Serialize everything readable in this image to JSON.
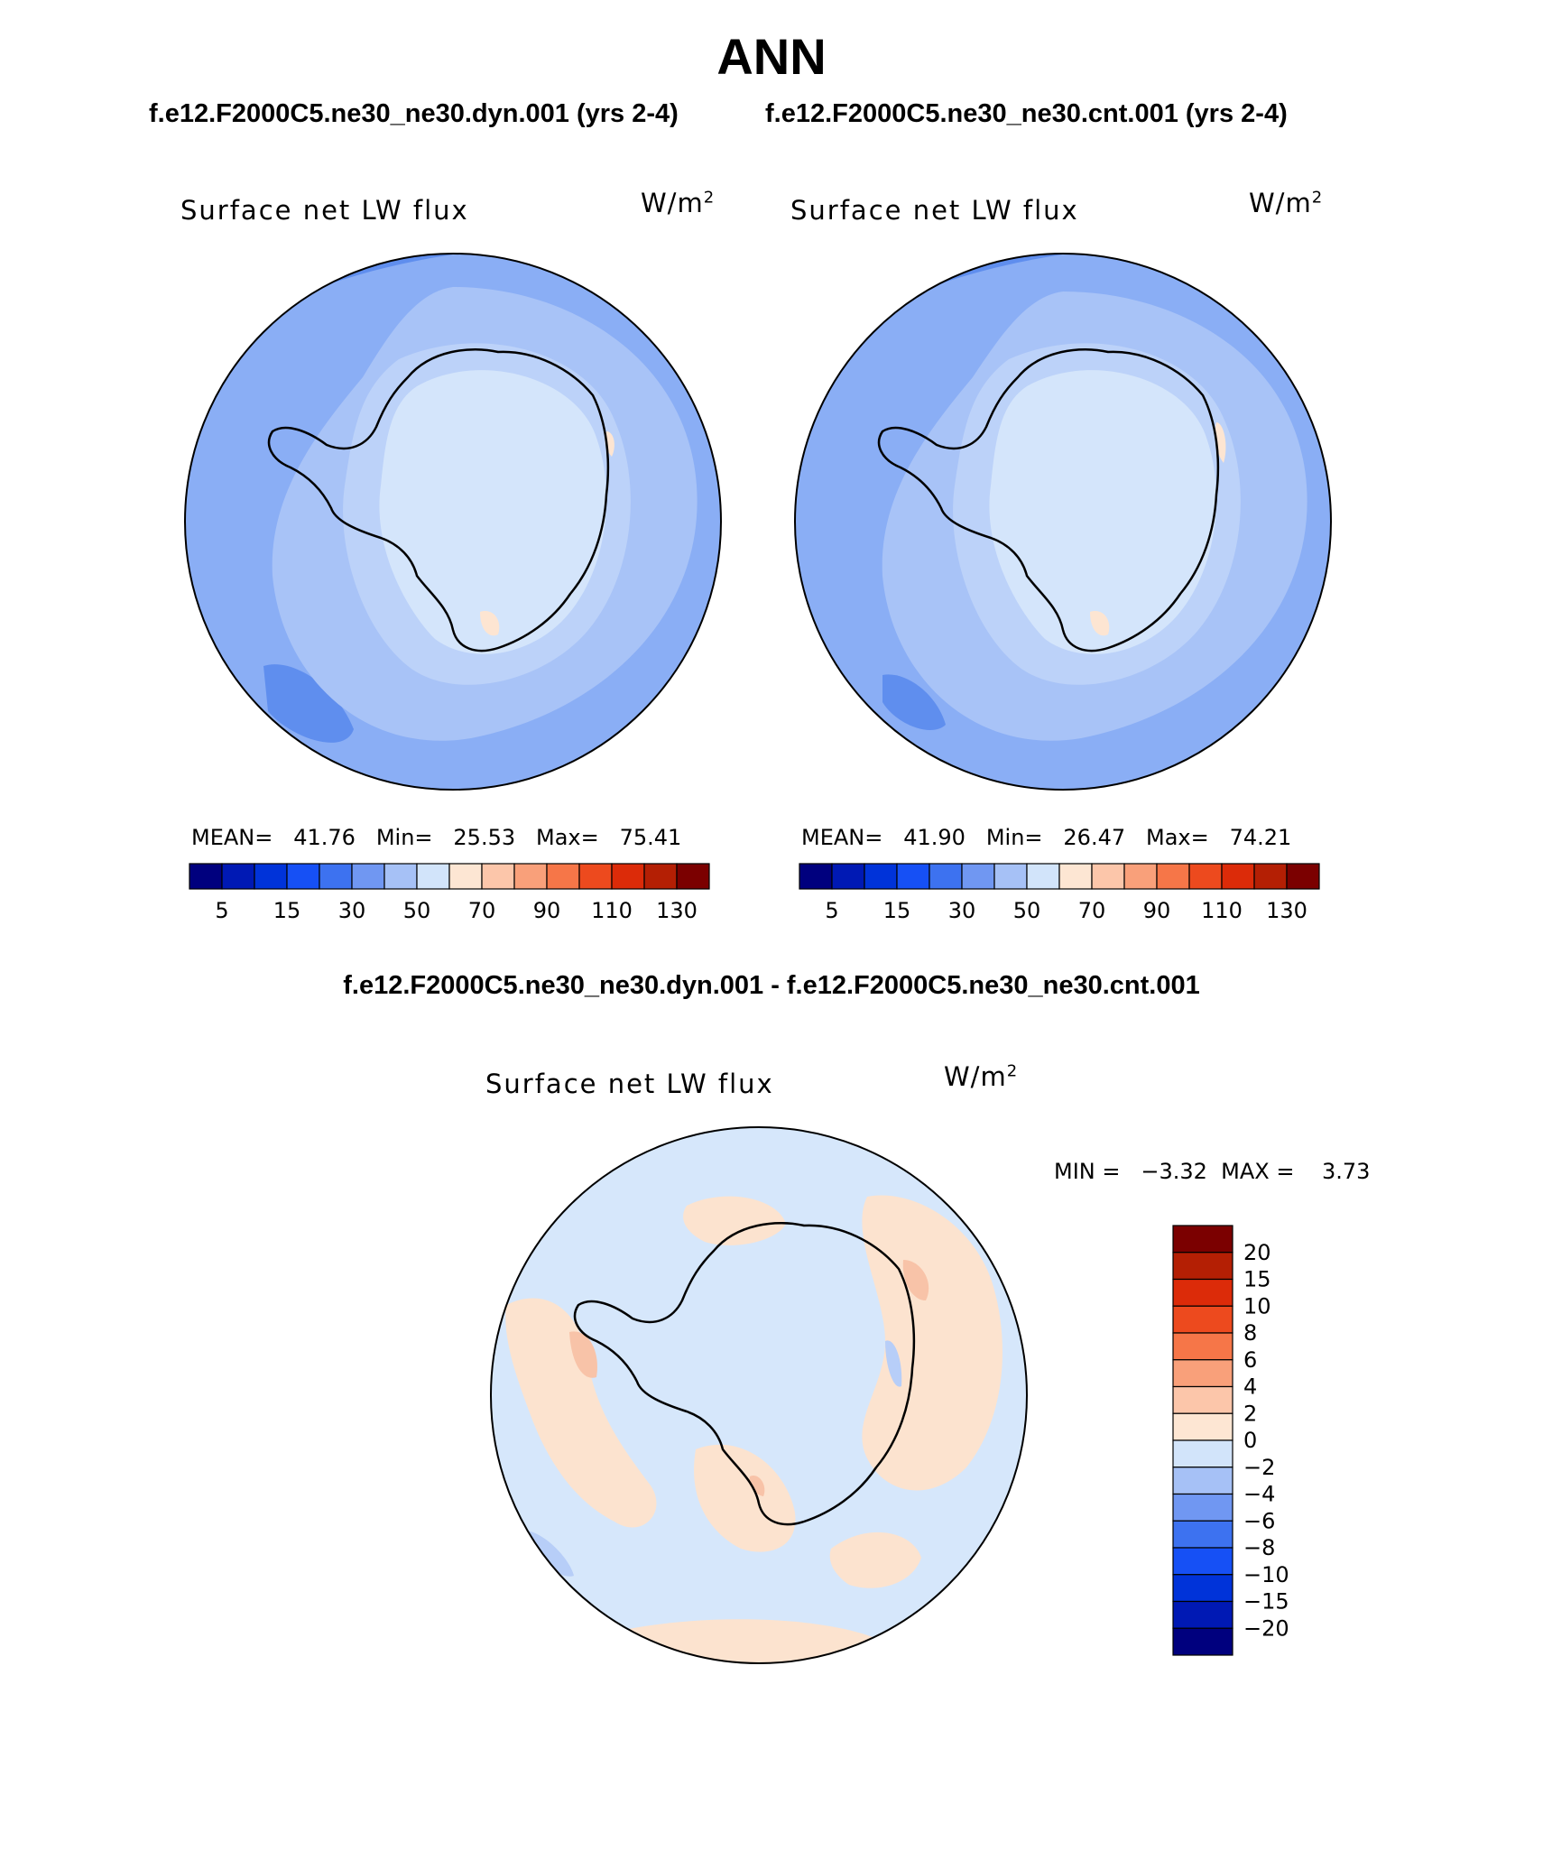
{
  "title": "ANN",
  "case_left": "f.e12.F2000C5.ne30_ne30.dyn.001 (yrs 2-4)",
  "case_right": "f.e12.F2000C5.ne30_ne30.cnt.001 (yrs 2-4)",
  "diff_title": "f.e12.F2000C5.ne30_ne30.dyn.001 - f.e12.F2000C5.ne30_ne30.cnt.001",
  "panels": [
    {
      "variable": "Surface net LW flux",
      "units_base": "W/m",
      "units_exp": "2",
      "stats": "MEAN=   41.76   Min=   25.53   Max=   75.41"
    },
    {
      "variable": "Surface net LW flux",
      "units_base": "W/m",
      "units_exp": "2",
      "stats": "MEAN=   41.90   Min=   26.47   Max=   74.21"
    }
  ],
  "diff_panel": {
    "variable": "Surface net LW flux",
    "units_base": "W/m",
    "units_exp": "2",
    "minmax": "MIN =   −3.32  MAX =    3.73"
  },
  "abs_colorbar": {
    "colors": [
      "#00007e",
      "#0019b4",
      "#0033d9",
      "#1650f5",
      "#3d72f0",
      "#7097f2",
      "#a6c1f6",
      "#d2e4fa",
      "#fde6d3",
      "#fcc6aa",
      "#f9a07a",
      "#f67648",
      "#ed4a1e",
      "#dc2b09",
      "#b41f04",
      "#7b0000"
    ],
    "labels": [
      "5",
      "15",
      "30",
      "50",
      "70",
      "90",
      "110",
      "130"
    ]
  },
  "diff_colorbar": {
    "colors": [
      "#00007e",
      "#0019b4",
      "#0033d9",
      "#1650f5",
      "#3d72f0",
      "#7097f2",
      "#a6c1f6",
      "#d2e4fa",
      "#fde6d3",
      "#fcc6aa",
      "#f9a07a",
      "#f67648",
      "#ed4a1e",
      "#dc2b09",
      "#b41f04",
      "#7b0000"
    ],
    "labels": [
      "20",
      "15",
      "10",
      "8",
      "6",
      "4",
      "2",
      "0",
      "−2",
      "−4",
      "−6",
      "−8",
      "−10",
      "−15",
      "−20"
    ]
  },
  "map_colors": {
    "ocean_far": "#8aaef5",
    "ocean_mid": "#a8c3f7",
    "coast_band": "#bcd2f9",
    "interior": "#d4e5fb",
    "dark_blue": "#5f8eee",
    "orange_light": "#fde5d2",
    "diff_bg": "#d6e7fb",
    "diff_pos": "#fce3cf",
    "diff_pos2": "#f8c3a8",
    "diff_neg": "#b7cef8"
  }
}
